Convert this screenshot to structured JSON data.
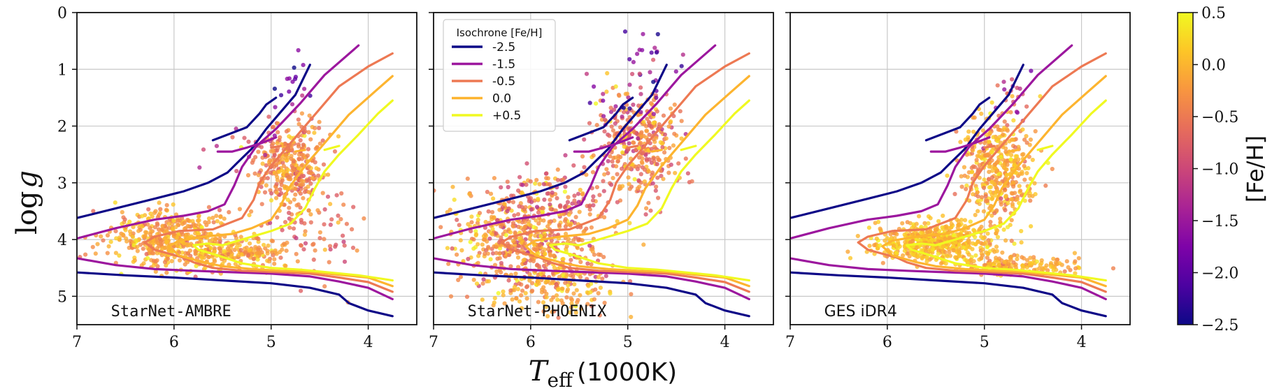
{
  "chart_data": {
    "type": "scatter",
    "description_axes": {
      "xlabel": "T_eff (1000K)",
      "xlabel_main": "T",
      "xlabel_sub": "eff",
      "xlabel_unit": "(1000K)",
      "ylabel": "log g",
      "ylabel_main": "log",
      "ylabel_var": "g",
      "xlim": [
        7,
        3.5
      ],
      "ylim": [
        5.5,
        0
      ],
      "xticks": [
        7,
        6,
        5,
        4
      ],
      "yticks": [
        0,
        1,
        2,
        3,
        4,
        5
      ],
      "grid": true
    },
    "panels": [
      {
        "label": "StarNet-AMBRE",
        "mono": true,
        "dataset": "ambre"
      },
      {
        "label": "StarNet-PHOENIX",
        "mono": true,
        "dataset": "phoenix"
      },
      {
        "label": "GES iDR4",
        "mono": false,
        "dataset": "ges"
      }
    ],
    "legend": {
      "title": "Isochrone [Fe/H]",
      "entries": [
        {
          "label": "-2.5",
          "color": "#0d0887"
        },
        {
          "label": "-1.5",
          "color": "#9c179e"
        },
        {
          "label": "-0.5",
          "color": "#ed7953"
        },
        {
          "label": "0.0",
          "color": "#fdb42f"
        },
        {
          "label": "+0.5",
          "color": "#f0f921"
        }
      ]
    },
    "isochrones": [
      {
        "feh": "-2.5",
        "color": "#0d0887",
        "ms": [
          [
            7.0,
            4.58
          ],
          [
            6.5,
            4.63
          ],
          [
            6.0,
            4.67
          ],
          [
            5.5,
            4.72
          ],
          [
            5.0,
            4.77
          ],
          [
            4.6,
            4.85
          ],
          [
            4.3,
            4.97
          ],
          [
            4.2,
            5.12
          ],
          [
            4.0,
            5.25
          ],
          [
            3.75,
            5.35
          ]
        ],
        "to": [
          [
            7.0,
            3.62
          ],
          [
            6.6,
            3.45
          ],
          [
            6.2,
            3.28
          ],
          [
            5.9,
            3.15
          ],
          [
            5.65,
            3.0
          ],
          [
            5.45,
            2.82
          ],
          [
            5.35,
            2.65
          ],
          [
            5.2,
            2.4
          ],
          [
            5.05,
            2.05
          ],
          [
            4.9,
            1.75
          ],
          [
            4.75,
            1.45
          ],
          [
            4.6,
            0.92
          ]
        ],
        "hb": [
          [
            5.6,
            2.25
          ],
          [
            5.4,
            2.12
          ],
          [
            5.25,
            2.02
          ],
          [
            5.12,
            1.78
          ],
          [
            5.05,
            1.62
          ],
          [
            4.95,
            1.5
          ]
        ]
      },
      {
        "feh": "-1.5",
        "color": "#9c179e",
        "ms": [
          [
            7.0,
            4.33
          ],
          [
            6.6,
            4.45
          ],
          [
            6.2,
            4.52
          ],
          [
            5.8,
            4.55
          ],
          [
            5.5,
            4.57
          ],
          [
            5.0,
            4.6
          ],
          [
            4.6,
            4.65
          ],
          [
            4.3,
            4.74
          ],
          [
            4.0,
            4.85
          ],
          [
            3.75,
            5.05
          ]
        ],
        "to": [
          [
            7.0,
            3.98
          ],
          [
            6.6,
            3.8
          ],
          [
            6.2,
            3.65
          ],
          [
            5.9,
            3.58
          ],
          [
            5.65,
            3.5
          ],
          [
            5.48,
            3.38
          ],
          [
            5.38,
            3.05
          ],
          [
            5.3,
            2.72
          ],
          [
            5.15,
            2.35
          ],
          [
            4.95,
            2.05
          ],
          [
            4.7,
            1.6
          ],
          [
            4.45,
            1.1
          ],
          [
            4.1,
            0.58
          ]
        ],
        "hb": [
          [
            5.55,
            2.45
          ],
          [
            5.4,
            2.45
          ],
          [
            5.25,
            2.38
          ],
          [
            5.1,
            2.3
          ],
          [
            4.95,
            2.2
          ]
        ]
      },
      {
        "feh": "-0.5",
        "color": "#ed7953",
        "ms": [
          [
            5.9,
            4.32
          ],
          [
            5.8,
            4.4
          ],
          [
            5.6,
            4.5
          ],
          [
            5.3,
            4.55
          ],
          [
            5.0,
            4.57
          ],
          [
            4.6,
            4.6
          ],
          [
            4.3,
            4.67
          ],
          [
            4.0,
            4.75
          ],
          [
            3.75,
            4.92
          ]
        ],
        "to": [
          [
            5.9,
            4.32
          ],
          [
            6.2,
            4.18
          ],
          [
            6.3,
            4.05
          ],
          [
            6.2,
            3.95
          ],
          [
            5.95,
            3.85
          ],
          [
            5.6,
            3.82
          ],
          [
            5.3,
            3.62
          ],
          [
            5.18,
            3.3
          ],
          [
            5.12,
            3.0
          ],
          [
            5.0,
            2.7
          ],
          [
            4.8,
            2.3
          ],
          [
            4.55,
            1.8
          ],
          [
            4.3,
            1.3
          ],
          [
            4.0,
            0.95
          ],
          [
            3.75,
            0.72
          ]
        ],
        "hb": [
          [
            5.0,
            2.38
          ],
          [
            4.9,
            2.35
          ]
        ]
      },
      {
        "feh": "0.0",
        "color": "#fdb42f",
        "ms": [
          [
            5.7,
            4.4
          ],
          [
            5.5,
            4.47
          ],
          [
            5.2,
            4.52
          ],
          [
            4.9,
            4.55
          ],
          [
            4.6,
            4.57
          ],
          [
            4.3,
            4.62
          ],
          [
            4.0,
            4.67
          ],
          [
            3.75,
            4.82
          ]
        ],
        "to": [
          [
            5.7,
            4.4
          ],
          [
            5.95,
            4.28
          ],
          [
            6.05,
            4.12
          ],
          [
            5.95,
            4.02
          ],
          [
            5.7,
            3.95
          ],
          [
            5.4,
            3.9
          ],
          [
            5.2,
            3.8
          ],
          [
            5.0,
            3.65
          ],
          [
            4.9,
            3.4
          ],
          [
            4.82,
            3.1
          ],
          [
            4.65,
            2.7
          ],
          [
            4.45,
            2.3
          ],
          [
            4.2,
            1.8
          ],
          [
            3.95,
            1.42
          ],
          [
            3.75,
            1.12
          ]
        ],
        "hb": [
          [
            4.75,
            2.45
          ],
          [
            4.65,
            2.42
          ]
        ]
      },
      {
        "feh": "+0.5",
        "color": "#f0f921",
        "ms": [
          [
            5.55,
            4.28
          ],
          [
            5.3,
            4.42
          ],
          [
            5.0,
            4.5
          ],
          [
            4.7,
            4.53
          ],
          [
            4.4,
            4.58
          ],
          [
            4.1,
            4.63
          ],
          [
            3.75,
            4.72
          ]
        ],
        "to": [
          [
            5.55,
            4.28
          ],
          [
            5.75,
            4.18
          ],
          [
            5.8,
            4.1
          ],
          [
            5.65,
            4.07
          ],
          [
            5.5,
            4.1
          ],
          [
            5.4,
            4.05
          ],
          [
            5.2,
            3.95
          ],
          [
            5.0,
            3.85
          ],
          [
            4.8,
            3.72
          ],
          [
            4.65,
            3.45
          ],
          [
            4.55,
            3.1
          ],
          [
            4.45,
            2.8
          ],
          [
            4.3,
            2.5
          ],
          [
            4.1,
            2.15
          ],
          [
            3.9,
            1.78
          ],
          [
            3.75,
            1.55
          ]
        ],
        "hb": [
          [
            4.45,
            2.42
          ],
          [
            4.3,
            2.35
          ]
        ]
      }
    ],
    "colorbar": {
      "label": "[Fe/H]",
      "min": -2.5,
      "max": 0.5,
      "ticks": [
        0.5,
        0.0,
        -0.5,
        -1.0,
        -1.5,
        -2.0,
        -2.5
      ],
      "tick_labels": [
        "0.5",
        "0.0",
        "−0.5",
        "−1.0",
        "−1.5",
        "−2.0",
        "−2.5"
      ],
      "colormap": "plasma"
    },
    "point_clusters": {
      "ambre": [
        {
          "cx": 6.0,
          "cy": 4.0,
          "sx": 0.35,
          "sy": 0.25,
          "n": 480,
          "feh": -0.15,
          "fs": 0.25
        },
        {
          "cx": 5.3,
          "cy": 4.25,
          "sx": 0.25,
          "sy": 0.12,
          "n": 150,
          "feh": -0.2,
          "fs": 0.25
        },
        {
          "cx": 4.8,
          "cy": 2.7,
          "sx": 0.18,
          "sy": 0.4,
          "n": 340,
          "feh": -0.35,
          "fs": 0.3
        },
        {
          "cx": 4.6,
          "cy": 3.8,
          "sx": 0.25,
          "sy": 0.4,
          "n": 70,
          "feh": -0.5,
          "fs": 0.3
        },
        {
          "cx": 4.8,
          "cy": 1.2,
          "sx": 0.1,
          "sy": 0.25,
          "n": 16,
          "feh": -1.9,
          "fs": 0.4
        },
        {
          "cx": 5.25,
          "cy": 2.4,
          "sx": 0.2,
          "sy": 0.2,
          "n": 15,
          "feh": -1.1,
          "fs": 0.5
        }
      ],
      "phoenix": [
        {
          "cx": 6.05,
          "cy": 3.95,
          "sx": 0.4,
          "sy": 0.45,
          "n": 560,
          "feh": -0.3,
          "fs": 0.35
        },
        {
          "cx": 5.75,
          "cy": 4.8,
          "sx": 0.3,
          "sy": 0.25,
          "n": 170,
          "feh": -0.1,
          "fs": 0.3
        },
        {
          "cx": 4.9,
          "cy": 2.3,
          "sx": 0.2,
          "sy": 0.45,
          "n": 330,
          "feh": -0.45,
          "fs": 0.35
        },
        {
          "cx": 5.7,
          "cy": 3.15,
          "sx": 0.4,
          "sy": 0.25,
          "n": 90,
          "feh": -0.6,
          "fs": 0.35
        },
        {
          "cx": 4.75,
          "cy": 0.8,
          "sx": 0.18,
          "sy": 0.35,
          "n": 22,
          "feh": -1.7,
          "fs": 0.5
        },
        {
          "cx": 5.1,
          "cy": 1.5,
          "sx": 0.15,
          "sy": 0.25,
          "n": 25,
          "feh": -1.4,
          "fs": 0.5
        }
      ],
      "ges": [
        {
          "cx": 5.5,
          "cy": 4.05,
          "sx": 0.3,
          "sy": 0.17,
          "n": 560,
          "feh": 0.05,
          "fs": 0.2
        },
        {
          "cx": 4.7,
          "cy": 4.45,
          "sx": 0.35,
          "sy": 0.08,
          "n": 170,
          "feh": -0.1,
          "fs": 0.2
        },
        {
          "cx": 4.85,
          "cy": 2.8,
          "sx": 0.18,
          "sy": 0.45,
          "n": 420,
          "feh": -0.1,
          "fs": 0.25
        },
        {
          "cx": 4.7,
          "cy": 1.4,
          "sx": 0.12,
          "sy": 0.3,
          "n": 22,
          "feh": -1.0,
          "fs": 0.5
        }
      ]
    }
  }
}
